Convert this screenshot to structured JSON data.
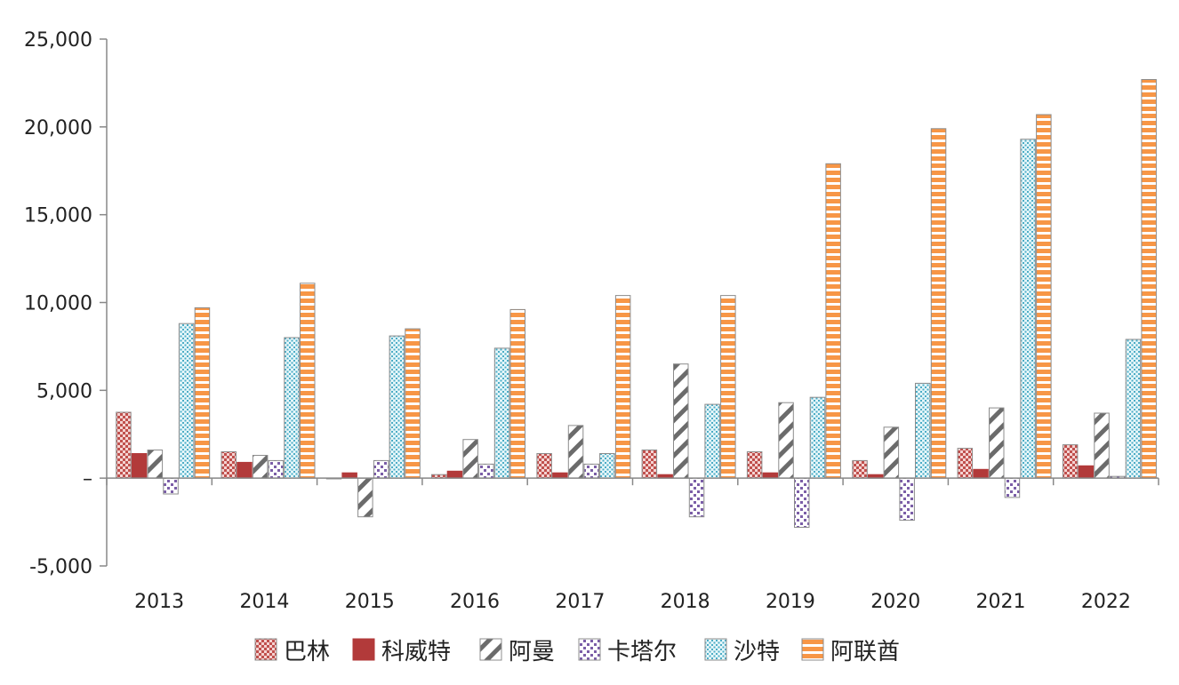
{
  "chart_data": {
    "type": "bar",
    "categories": [
      "2013",
      "2014",
      "2015",
      "2016",
      "2017",
      "2018",
      "2019",
      "2020",
      "2021",
      "2022"
    ],
    "series": [
      {
        "name": "巴林",
        "color": "#c0504d",
        "pattern": "checker",
        "values": [
          3750,
          1500,
          0,
          200,
          1400,
          1600,
          1500,
          1000,
          1700,
          1900
        ]
      },
      {
        "name": "科威特",
        "color": "#b23a3a",
        "pattern": "solid",
        "values": [
          1400,
          900,
          300,
          400,
          300,
          200,
          300,
          200,
          500,
          700
        ]
      },
      {
        "name": "阿曼",
        "color": "#6b6b6b",
        "pattern": "diagonal",
        "values": [
          1600,
          1300,
          -2200,
          2200,
          3000,
          6500,
          4300,
          2900,
          4000,
          3700
        ]
      },
      {
        "name": "卡塔尔",
        "color": "#7b5ea7",
        "pattern": "dots",
        "values": [
          -900,
          1000,
          1000,
          800,
          800,
          -2200,
          -2800,
          -2400,
          -1100,
          100
        ]
      },
      {
        "name": "沙特",
        "color": "#4bacc6",
        "pattern": "grid",
        "values": [
          8800,
          8000,
          8100,
          7400,
          1400,
          4200,
          4600,
          5400,
          19300,
          7900
        ]
      },
      {
        "name": "阿联酋",
        "color": "#f79646",
        "pattern": "hstripes",
        "values": [
          9700,
          11100,
          8500,
          9600,
          10400,
          10400,
          17900,
          19900,
          20700,
          22700
        ]
      }
    ],
    "y_ticks": [
      {
        "value": -5000,
        "label": "-5,000"
      },
      {
        "value": 0,
        "label": "–"
      },
      {
        "value": 5000,
        "label": "5,000"
      },
      {
        "value": 10000,
        "label": "10,000"
      },
      {
        "value": 15000,
        "label": "15,000"
      },
      {
        "value": 20000,
        "label": "20,000"
      },
      {
        "value": 25000,
        "label": "25,000"
      }
    ],
    "ylim": [
      -5000,
      25000
    ],
    "grid": false,
    "legend_position": "bottom"
  }
}
